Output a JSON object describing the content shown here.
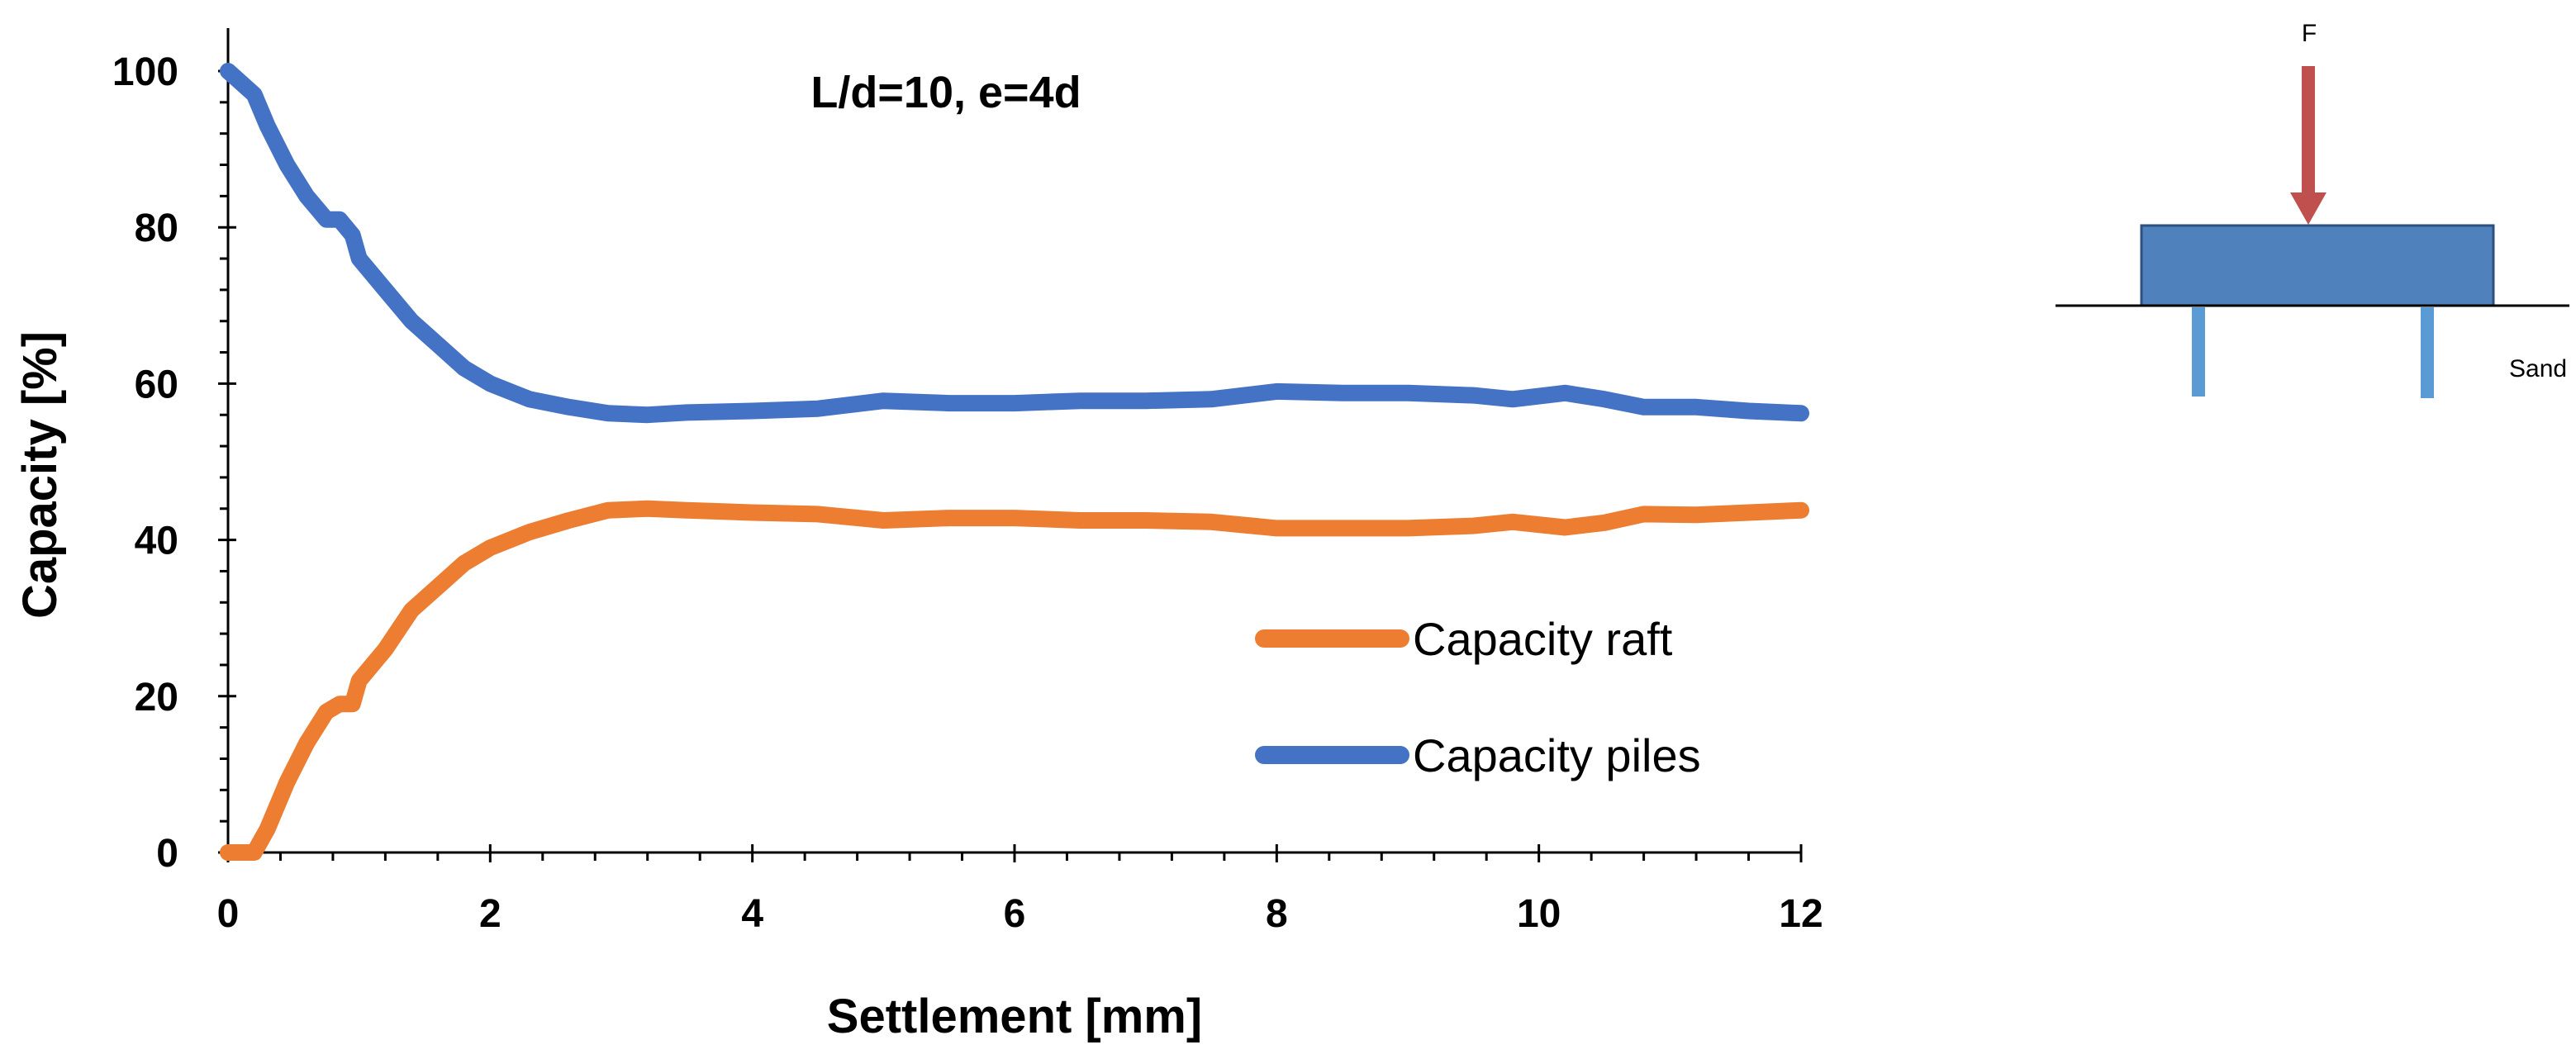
{
  "chart_data": {
    "type": "line",
    "title": "L/d=10, e=4d",
    "xlabel": "Settlement [mm]",
    "ylabel": "Capacity [%]",
    "xlim": [
      0,
      12
    ],
    "ylim": [
      0,
      100
    ],
    "xticks": [
      "0",
      "2",
      "4",
      "6",
      "8",
      "10",
      "12"
    ],
    "yticks": [
      "0",
      "20",
      "40",
      "60",
      "80",
      "100"
    ],
    "grid": false,
    "legend_position": "center-right",
    "series": [
      {
        "name": "Capacity raft",
        "color": "#ED7D31",
        "x": [
          0,
          0.2,
          0.3,
          0.45,
          0.6,
          0.75,
          0.85,
          0.95,
          1.0,
          1.2,
          1.4,
          1.6,
          1.8,
          2.0,
          2.3,
          2.6,
          2.9,
          3.2,
          3.5,
          4.0,
          4.5,
          5.0,
          5.5,
          6.0,
          6.5,
          7.0,
          7.5,
          8.0,
          8.5,
          9.0,
          9.5,
          9.8,
          10.2,
          10.5,
          10.8,
          11.2,
          11.6,
          12.0
        ],
        "values": [
          0,
          0,
          3,
          9,
          14,
          18,
          19,
          19,
          22,
          26,
          31,
          34,
          37,
          39,
          41,
          42.5,
          43.8,
          44,
          43.8,
          43.5,
          43.3,
          42.5,
          42.8,
          42.8,
          42.5,
          42.5,
          42.3,
          41.5,
          41.5,
          41.5,
          41.8,
          42.3,
          41.6,
          42.2,
          43.3,
          43.2,
          43.5,
          43.8
        ]
      },
      {
        "name": "Capacity piles",
        "color": "#4472C4",
        "x": [
          0,
          0.2,
          0.3,
          0.45,
          0.6,
          0.75,
          0.85,
          0.95,
          1.0,
          1.2,
          1.4,
          1.6,
          1.8,
          2.0,
          2.3,
          2.6,
          2.9,
          3.2,
          3.5,
          4.0,
          4.5,
          5.0,
          5.5,
          6.0,
          6.5,
          7.0,
          7.5,
          8.0,
          8.5,
          9.0,
          9.5,
          9.8,
          10.2,
          10.5,
          10.8,
          11.2,
          11.6,
          12.0
        ],
        "values": [
          100,
          97,
          93,
          88,
          84,
          81,
          81,
          79,
          76,
          72,
          68,
          65,
          62,
          60,
          58,
          57,
          56.2,
          56,
          56.3,
          56.5,
          56.8,
          57.8,
          57.5,
          57.5,
          57.8,
          57.8,
          58,
          59,
          58.8,
          58.8,
          58.5,
          58,
          58.8,
          58,
          57,
          57,
          56.5,
          56.2
        ]
      }
    ]
  },
  "diagram": {
    "force_label": "F",
    "soil_label": "Sand",
    "force_color": "#C0504D",
    "raft_color": "#4F81BD",
    "pile_color": "#5B9BD5"
  }
}
